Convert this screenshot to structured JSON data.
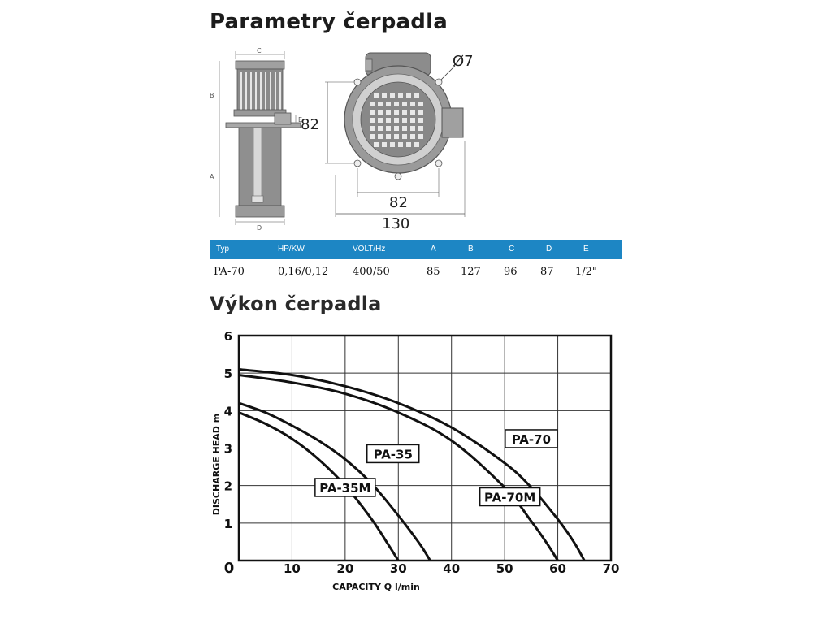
{
  "titles": {
    "params": "Parametry čerpadla",
    "performance": "Výkon čerpadla"
  },
  "drawing": {
    "side_labels": {
      "c": "C",
      "b": "B",
      "e": "E",
      "a": "A",
      "d": "D"
    },
    "front_labels": {
      "hole": "Ø7",
      "height": "82",
      "inner_width": "82",
      "outer_width": "130"
    }
  },
  "spec_table": {
    "headers": [
      "Typ",
      "HP/KW",
      "VOLT/Hz",
      "A",
      "B",
      "C",
      "D",
      "E"
    ],
    "rows": [
      [
        "PA-70",
        "0,16/0,12",
        "400/50",
        "85",
        "127",
        "96",
        "87",
        "1/2\""
      ]
    ],
    "header_color": "#1d86c4"
  },
  "chart_data": {
    "type": "line",
    "xlabel": "CAPACITY Q l/min",
    "ylabel": "DISCHARGE HEAD m",
    "xlim": [
      0,
      70
    ],
    "ylim": [
      0,
      6
    ],
    "x_ticks": [
      "0",
      "10",
      "20",
      "30",
      "40",
      "50",
      "60",
      "70"
    ],
    "y_ticks": [
      "1",
      "2",
      "3",
      "4",
      "5",
      "6"
    ],
    "grid": true,
    "series": [
      {
        "name": "PA-35M",
        "x": [
          0,
          5,
          10,
          15,
          20,
          25,
          28,
          30
        ],
        "y": [
          3.95,
          3.65,
          3.25,
          2.7,
          2.0,
          1.1,
          0.45,
          0
        ]
      },
      {
        "name": "PA-35",
        "x": [
          0,
          5,
          10,
          15,
          20,
          25,
          30,
          34,
          36
        ],
        "y": [
          4.2,
          3.95,
          3.6,
          3.2,
          2.7,
          2.05,
          1.2,
          0.45,
          0
        ]
      },
      {
        "name": "PA-70M",
        "x": [
          0,
          10,
          20,
          30,
          40,
          50,
          55,
          58,
          60
        ],
        "y": [
          4.95,
          4.75,
          4.45,
          3.95,
          3.2,
          1.95,
          1.05,
          0.45,
          0
        ]
      },
      {
        "name": "PA-70",
        "x": [
          0,
          10,
          20,
          30,
          40,
          50,
          55,
          60,
          63,
          65
        ],
        "y": [
          5.1,
          4.95,
          4.65,
          4.2,
          3.55,
          2.6,
          1.95,
          1.1,
          0.5,
          0
        ]
      }
    ],
    "annotations": [
      {
        "text": "PA-70",
        "x": 55,
        "y": 3.25
      },
      {
        "text": "PA-35",
        "x": 29,
        "y": 2.85
      },
      {
        "text": "PA-70M",
        "x": 51,
        "y": 1.7
      },
      {
        "text": "PA-35M",
        "x": 20,
        "y": 1.95
      }
    ]
  }
}
